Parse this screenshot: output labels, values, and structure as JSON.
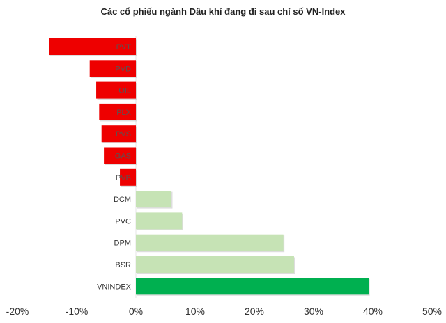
{
  "chart_data": {
    "type": "bar",
    "orientation": "horizontal",
    "title": "Các cổ phiếu ngành Dầu khí đang đi sau chỉ số VN-Index",
    "xlabel": "",
    "ylabel": "",
    "xlim": [
      -20,
      50
    ],
    "x_ticks": [
      -20,
      -10,
      0,
      10,
      20,
      30,
      40,
      50
    ],
    "x_tick_labels": [
      "-20%",
      "-10%",
      "0%",
      "10%",
      "20%",
      "30%",
      "40%",
      "50%"
    ],
    "grid": false,
    "categories": [
      "PVT",
      "PVD",
      "OIL",
      "PLX",
      "PVS",
      "GAS",
      "PVB",
      "DCM",
      "PVC",
      "DPM",
      "BSR",
      "VNINDEX"
    ],
    "values": [
      -14.7,
      -7.8,
      -6.7,
      -6.2,
      -5.8,
      -5.4,
      -2.7,
      6.0,
      7.8,
      24.9,
      26.7,
      39.3
    ],
    "colors": {
      "negative": "#ee0000",
      "positive": "#c6e3b5",
      "index": "#00b050",
      "label": "#555555"
    }
  }
}
